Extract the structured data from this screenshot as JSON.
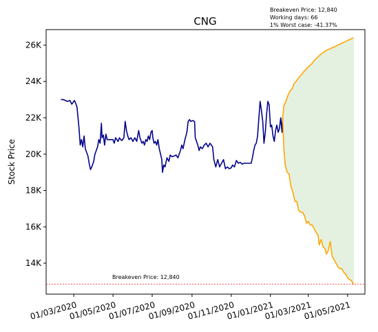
{
  "chart_data": {
    "type": "line",
    "title": "CNG",
    "xlabel": "",
    "ylabel": "Stock Price",
    "annotations": {
      "top_block": [
        "Breakeven Price: 12,840",
        "Working days: 66",
        "1% Worst case: -41.37%"
      ],
      "line_label": "Breakeven Price: 12,840"
    },
    "x_ticks": [
      {
        "date": "2020-03-01",
        "label": "01/03/2020"
      },
      {
        "date": "2020-05-01",
        "label": "01/05/2020"
      },
      {
        "date": "2020-07-01",
        "label": "01/07/2020"
      },
      {
        "date": "2020-09-01",
        "label": "01/09/2020"
      },
      {
        "date": "2020-11-01",
        "label": "01/11/2020"
      },
      {
        "date": "2021-01-01",
        "label": "01/01/2021"
      },
      {
        "date": "2021-03-01",
        "label": "01/03/2021"
      },
      {
        "date": "2021-05-01",
        "label": "01/05/2021"
      }
    ],
    "y_ticks": [
      {
        "value": 14000,
        "label": "14K"
      },
      {
        "value": 16000,
        "label": "16K"
      },
      {
        "value": 18000,
        "label": "18K"
      },
      {
        "value": 20000,
        "label": "20K"
      },
      {
        "value": 22000,
        "label": "22K"
      },
      {
        "value": 24000,
        "label": "24K"
      },
      {
        "value": 26000,
        "label": "26K"
      }
    ],
    "xlim": [
      "2020-01-18",
      "2021-05-28"
    ],
    "ylim": [
      12300,
      26850
    ],
    "breakeven": 12840,
    "series": [
      {
        "role": "historical",
        "color": "#00008b",
        "points": [
          [
            "2020-02-10",
            23000
          ],
          [
            "2020-02-14",
            23000
          ],
          [
            "2020-02-17",
            22950
          ],
          [
            "2020-02-20",
            22900
          ],
          [
            "2020-02-24",
            22950
          ],
          [
            "2020-02-27",
            22750
          ],
          [
            "2020-03-02",
            22950
          ],
          [
            "2020-03-04",
            22800
          ],
          [
            "2020-03-06",
            22600
          ],
          [
            "2020-03-09",
            21500
          ],
          [
            "2020-03-11",
            20500
          ],
          [
            "2020-03-13",
            20800
          ],
          [
            "2020-03-15",
            20400
          ],
          [
            "2020-03-17",
            21000
          ],
          [
            "2020-03-19",
            20300
          ],
          [
            "2020-03-21",
            20100
          ],
          [
            "2020-03-23",
            19900
          ],
          [
            "2020-03-25",
            19500
          ],
          [
            "2020-03-27",
            19150
          ],
          [
            "2020-03-29",
            19300
          ],
          [
            "2020-04-01",
            19600
          ],
          [
            "2020-04-03",
            20000
          ],
          [
            "2020-04-05",
            20200
          ],
          [
            "2020-04-07",
            20400
          ],
          [
            "2020-04-09",
            20800
          ],
          [
            "2020-04-11",
            20600
          ],
          [
            "2020-04-13",
            21700
          ],
          [
            "2020-04-14",
            20900
          ],
          [
            "2020-04-16",
            21050
          ],
          [
            "2020-04-18",
            20500
          ],
          [
            "2020-04-20",
            21100
          ],
          [
            "2020-04-22",
            20800
          ],
          [
            "2020-04-24",
            20800
          ],
          [
            "2020-04-26",
            20800
          ],
          [
            "2020-04-29",
            20800
          ],
          [
            "2020-05-01",
            20800
          ],
          [
            "2020-05-03",
            20600
          ],
          [
            "2020-05-05",
            20900
          ],
          [
            "2020-05-07",
            20800
          ],
          [
            "2020-05-09",
            20700
          ],
          [
            "2020-05-11",
            20900
          ],
          [
            "2020-05-13",
            20800
          ],
          [
            "2020-05-15",
            20750
          ],
          [
            "2020-05-18",
            20900
          ],
          [
            "2020-05-20",
            21800
          ],
          [
            "2020-05-22",
            21300
          ],
          [
            "2020-05-24",
            21000
          ],
          [
            "2020-05-26",
            20800
          ],
          [
            "2020-05-29",
            20900
          ],
          [
            "2020-06-01",
            20700
          ],
          [
            "2020-06-04",
            20900
          ],
          [
            "2020-06-07",
            20700
          ],
          [
            "2020-06-10",
            21300
          ],
          [
            "2020-06-12",
            20900
          ],
          [
            "2020-06-15",
            20600
          ],
          [
            "2020-06-17",
            20700
          ],
          [
            "2020-06-19",
            20500
          ],
          [
            "2020-06-21",
            20800
          ],
          [
            "2020-06-23",
            20700
          ],
          [
            "2020-06-25",
            21000
          ],
          [
            "2020-06-27",
            20800
          ],
          [
            "2020-06-29",
            21200
          ],
          [
            "2020-07-01",
            21300
          ],
          [
            "2020-07-02",
            20900
          ],
          [
            "2020-07-04",
            20600
          ],
          [
            "2020-07-06",
            20700
          ],
          [
            "2020-07-08",
            20500
          ],
          [
            "2020-07-10",
            20800
          ],
          [
            "2020-07-12",
            20300
          ],
          [
            "2020-07-14",
            20000
          ],
          [
            "2020-07-16",
            19700
          ],
          [
            "2020-07-17",
            19000
          ],
          [
            "2020-07-19",
            19400
          ],
          [
            "2020-07-21",
            19300
          ],
          [
            "2020-07-24",
            19800
          ],
          [
            "2020-07-27",
            19600
          ],
          [
            "2020-07-29",
            19950
          ],
          [
            "2020-08-01",
            19850
          ],
          [
            "2020-08-04",
            19900
          ],
          [
            "2020-08-07",
            19950
          ],
          [
            "2020-08-10",
            19800
          ],
          [
            "2020-08-12",
            20000
          ],
          [
            "2020-08-14",
            20200
          ],
          [
            "2020-08-16",
            20500
          ],
          [
            "2020-08-18",
            20300
          ],
          [
            "2020-08-21",
            20800
          ],
          [
            "2020-08-24",
            21200
          ],
          [
            "2020-08-26",
            21800
          ],
          [
            "2020-08-28",
            21900
          ],
          [
            "2020-08-30",
            21800
          ],
          [
            "2020-09-02",
            21850
          ],
          [
            "2020-09-05",
            21800
          ],
          [
            "2020-09-06",
            20900
          ],
          [
            "2020-09-08",
            20700
          ],
          [
            "2020-09-10",
            20500
          ],
          [
            "2020-09-12",
            20200
          ],
          [
            "2020-09-14",
            20400
          ],
          [
            "2020-09-17",
            20300
          ],
          [
            "2020-09-20",
            20500
          ],
          [
            "2020-09-23",
            20600
          ],
          [
            "2020-09-26",
            20400
          ],
          [
            "2020-09-29",
            20600
          ],
          [
            "2020-10-01",
            20500
          ],
          [
            "2020-10-03",
            20400
          ],
          [
            "2020-10-05",
            19700
          ],
          [
            "2020-10-08",
            19300
          ],
          [
            "2020-10-11",
            19700
          ],
          [
            "2020-10-14",
            19300
          ],
          [
            "2020-10-17",
            19500
          ],
          [
            "2020-10-20",
            19700
          ],
          [
            "2020-10-23",
            19200
          ],
          [
            "2020-10-26",
            19300
          ],
          [
            "2020-10-29",
            19200
          ],
          [
            "2020-11-01",
            19250
          ],
          [
            "2020-11-03",
            19400
          ],
          [
            "2020-11-06",
            19300
          ],
          [
            "2020-11-09",
            19650
          ],
          [
            "2020-11-12",
            19500
          ],
          [
            "2020-11-15",
            19550
          ],
          [
            "2020-11-18",
            19450
          ],
          [
            "2020-11-21",
            19500
          ],
          [
            "2020-11-24",
            19500
          ],
          [
            "2020-11-27",
            19500
          ],
          [
            "2020-11-30",
            19500
          ],
          [
            "2020-12-02",
            19500
          ],
          [
            "2020-12-04",
            19800
          ],
          [
            "2020-12-06",
            20200
          ],
          [
            "2020-12-08",
            20500
          ],
          [
            "2020-12-10",
            20600
          ],
          [
            "2020-12-12",
            21000
          ],
          [
            "2020-12-14",
            22000
          ],
          [
            "2020-12-16",
            22900
          ],
          [
            "2020-12-18",
            22400
          ],
          [
            "2020-12-20",
            21800
          ],
          [
            "2020-12-22",
            20600
          ],
          [
            "2020-12-24",
            21200
          ],
          [
            "2020-12-26",
            22200
          ],
          [
            "2020-12-28",
            22900
          ],
          [
            "2020-12-30",
            22700
          ],
          [
            "2021-01-01",
            21500
          ],
          [
            "2021-01-03",
            21600
          ],
          [
            "2021-01-05",
            21000
          ],
          [
            "2021-01-07",
            20700
          ],
          [
            "2021-01-09",
            21300
          ],
          [
            "2021-01-11",
            21600
          ],
          [
            "2021-01-13",
            21200
          ],
          [
            "2021-01-15",
            21400
          ],
          [
            "2021-01-17",
            22000
          ],
          [
            "2021-01-19",
            21200
          ],
          [
            "2021-01-20",
            22000
          ]
        ]
      },
      {
        "role": "upper-bound",
        "color": "#ffa500",
        "points": [
          [
            "2021-01-20",
            22000
          ],
          [
            "2021-01-22",
            22700
          ],
          [
            "2021-01-24",
            22800
          ],
          [
            "2021-01-26",
            23000
          ],
          [
            "2021-01-29",
            23300
          ],
          [
            "2021-02-01",
            23500
          ],
          [
            "2021-02-04",
            23600
          ],
          [
            "2021-02-07",
            23900
          ],
          [
            "2021-02-10",
            24000
          ],
          [
            "2021-02-13",
            24150
          ],
          [
            "2021-02-16",
            24300
          ],
          [
            "2021-02-19",
            24400
          ],
          [
            "2021-02-22",
            24550
          ],
          [
            "2021-02-25",
            24650
          ],
          [
            "2021-03-01",
            24800
          ],
          [
            "2021-03-04",
            24900
          ],
          [
            "2021-03-07",
            25000
          ],
          [
            "2021-03-10",
            25150
          ],
          [
            "2021-03-13",
            25250
          ],
          [
            "2021-03-16",
            25350
          ],
          [
            "2021-03-19",
            25450
          ],
          [
            "2021-03-22",
            25550
          ],
          [
            "2021-03-25",
            25600
          ],
          [
            "2021-03-28",
            25700
          ],
          [
            "2021-04-01",
            25750
          ],
          [
            "2021-04-04",
            25800
          ],
          [
            "2021-04-07",
            25850
          ],
          [
            "2021-04-10",
            25900
          ],
          [
            "2021-04-13",
            25950
          ],
          [
            "2021-04-16",
            26000
          ],
          [
            "2021-04-19",
            26050
          ],
          [
            "2021-04-22",
            26100
          ],
          [
            "2021-04-25",
            26150
          ],
          [
            "2021-04-28",
            26200
          ],
          [
            "2021-05-01",
            26250
          ],
          [
            "2021-05-04",
            26300
          ],
          [
            "2021-05-07",
            26350
          ],
          [
            "2021-05-10",
            26400
          ]
        ]
      },
      {
        "role": "lower-bound",
        "color": "#ffa500",
        "points": [
          [
            "2021-01-20",
            22000
          ],
          [
            "2021-01-22",
            20200
          ],
          [
            "2021-01-24",
            19400
          ],
          [
            "2021-01-27",
            19000
          ],
          [
            "2021-01-30",
            18900
          ],
          [
            "2021-02-02",
            18200
          ],
          [
            "2021-02-05",
            17900
          ],
          [
            "2021-02-08",
            17400
          ],
          [
            "2021-02-11",
            17400
          ],
          [
            "2021-02-14",
            16900
          ],
          [
            "2021-02-17",
            16800
          ],
          [
            "2021-02-20",
            16800
          ],
          [
            "2021-02-23",
            16600
          ],
          [
            "2021-02-26",
            16200
          ],
          [
            "2021-03-01",
            16300
          ],
          [
            "2021-03-04",
            16100
          ],
          [
            "2021-03-07",
            16100
          ],
          [
            "2021-03-10",
            15900
          ],
          [
            "2021-03-13",
            15700
          ],
          [
            "2021-03-16",
            15550
          ],
          [
            "2021-03-18",
            15000
          ],
          [
            "2021-03-21",
            15300
          ],
          [
            "2021-03-24",
            14900
          ],
          [
            "2021-03-27",
            14800
          ],
          [
            "2021-03-29",
            14500
          ],
          [
            "2021-04-01",
            14700
          ],
          [
            "2021-04-04",
            15200
          ],
          [
            "2021-04-07",
            14400
          ],
          [
            "2021-04-10",
            14200
          ],
          [
            "2021-04-13",
            14000
          ],
          [
            "2021-04-16",
            13800
          ],
          [
            "2021-04-19",
            13700
          ],
          [
            "2021-04-22",
            13700
          ],
          [
            "2021-04-25",
            13500
          ],
          [
            "2021-04-28",
            13400
          ],
          [
            "2021-05-01",
            13200
          ],
          [
            "2021-05-04",
            13100
          ],
          [
            "2021-05-07",
            13050
          ],
          [
            "2021-05-10",
            12840
          ]
        ]
      }
    ],
    "fill_between": {
      "upper": "upper-bound",
      "lower": "lower-bound",
      "color": "#e5f1e0"
    },
    "colors": {
      "breakeven_line": "#ff0000",
      "axis": "#000000"
    }
  }
}
